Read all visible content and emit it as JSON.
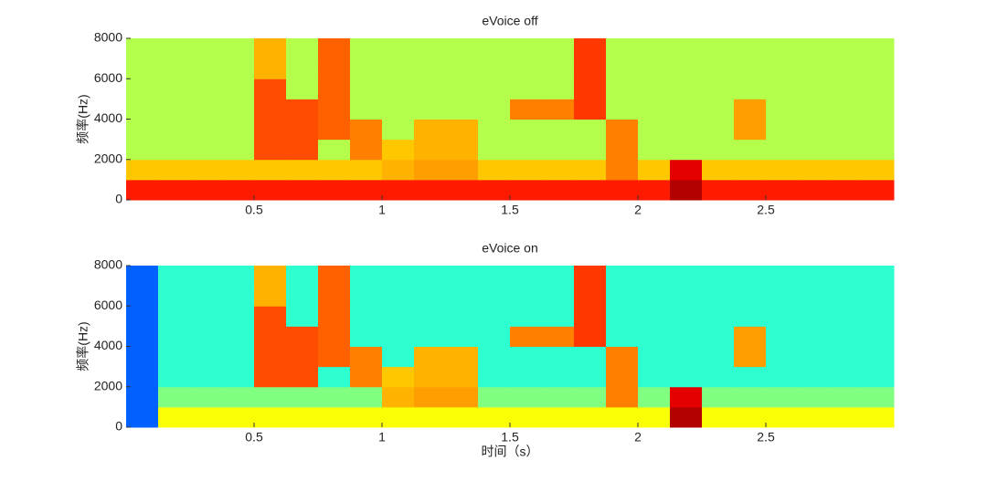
{
  "chart_data": [
    {
      "type": "heatmap",
      "title": "eVoice off",
      "ylabel": "频率(Hz)",
      "colormap": "jet",
      "zlim": [
        0,
        1
      ],
      "xlim": [
        0,
        3
      ],
      "ylim": [
        0,
        8000
      ],
      "xticks": [
        0.5,
        1,
        1.5,
        2,
        2.5
      ],
      "yticks": [
        0,
        2000,
        4000,
        6000,
        8000
      ],
      "x_bins": [
        0,
        0.125,
        0.25,
        0.375,
        0.5,
        0.625,
        0.75,
        0.875,
        1,
        1.125,
        1.25,
        1.375,
        1.5,
        1.625,
        1.75,
        1.875,
        2,
        2.125,
        2.25,
        2.375,
        2.5,
        2.625,
        2.75,
        2.875,
        3
      ],
      "y_bins": [
        0,
        1000,
        2000,
        3000,
        4000,
        5000,
        6000,
        7000,
        8000
      ],
      "z": [
        [
          0.85,
          0.85,
          0.85,
          0.85,
          0.85,
          0.85,
          0.85,
          0.85,
          0.85,
          0.85,
          0.85,
          0.85,
          0.85,
          0.85,
          0.85,
          0.85,
          0.85,
          0.95,
          0.85,
          0.85,
          0.85,
          0.85,
          0.85,
          0.85
        ],
        [
          0.68,
          0.68,
          0.68,
          0.68,
          0.68,
          0.68,
          0.68,
          0.68,
          0.7,
          0.72,
          0.72,
          0.68,
          0.68,
          0.68,
          0.68,
          0.75,
          0.68,
          0.9,
          0.68,
          0.68,
          0.68,
          0.68,
          0.68,
          0.68
        ],
        [
          0.55,
          0.55,
          0.55,
          0.55,
          0.8,
          0.8,
          0.55,
          0.75,
          0.68,
          0.7,
          0.7,
          0.55,
          0.55,
          0.55,
          0.55,
          0.75,
          0.55,
          0.55,
          0.55,
          0.55,
          0.55,
          0.55,
          0.55,
          0.55
        ],
        [
          0.55,
          0.55,
          0.55,
          0.55,
          0.8,
          0.8,
          0.78,
          0.75,
          0.55,
          0.7,
          0.7,
          0.55,
          0.55,
          0.55,
          0.55,
          0.75,
          0.55,
          0.55,
          0.55,
          0.72,
          0.55,
          0.55,
          0.55,
          0.55
        ],
        [
          0.55,
          0.55,
          0.55,
          0.55,
          0.8,
          0.8,
          0.78,
          0.55,
          0.55,
          0.55,
          0.55,
          0.55,
          0.75,
          0.75,
          0.82,
          0.55,
          0.55,
          0.55,
          0.55,
          0.72,
          0.55,
          0.55,
          0.55,
          0.55
        ],
        [
          0.55,
          0.55,
          0.55,
          0.55,
          0.8,
          0.55,
          0.78,
          0.55,
          0.55,
          0.55,
          0.55,
          0.55,
          0.55,
          0.55,
          0.82,
          0.55,
          0.55,
          0.55,
          0.55,
          0.55,
          0.55,
          0.55,
          0.55,
          0.55
        ],
        [
          0.55,
          0.55,
          0.55,
          0.55,
          0.7,
          0.55,
          0.78,
          0.55,
          0.55,
          0.55,
          0.55,
          0.55,
          0.55,
          0.55,
          0.82,
          0.55,
          0.55,
          0.55,
          0.55,
          0.55,
          0.55,
          0.55,
          0.55,
          0.55
        ],
        [
          0.55,
          0.55,
          0.55,
          0.55,
          0.7,
          0.55,
          0.78,
          0.55,
          0.55,
          0.55,
          0.55,
          0.55,
          0.55,
          0.55,
          0.82,
          0.55,
          0.55,
          0.55,
          0.55,
          0.55,
          0.55,
          0.55,
          0.55,
          0.55
        ]
      ]
    },
    {
      "type": "heatmap",
      "title": "eVoice on",
      "ylabel": "频率(Hz)",
      "xlabel": "时间（s）",
      "colormap": "jet",
      "zlim": [
        0,
        1
      ],
      "xlim": [
        0,
        3
      ],
      "ylim": [
        0,
        8000
      ],
      "xticks": [
        0.5,
        1,
        1.5,
        2,
        2.5
      ],
      "yticks": [
        0,
        2000,
        4000,
        6000,
        8000
      ],
      "x_bins": [
        0,
        0.125,
        0.25,
        0.375,
        0.5,
        0.625,
        0.75,
        0.875,
        1,
        1.125,
        1.25,
        1.375,
        1.5,
        1.625,
        1.75,
        1.875,
        2,
        2.125,
        2.25,
        2.375,
        2.5,
        2.625,
        2.75,
        2.875,
        3
      ],
      "y_bins": [
        0,
        1000,
        2000,
        3000,
        4000,
        5000,
        6000,
        7000,
        8000
      ],
      "z": [
        [
          0.22,
          0.62,
          0.62,
          0.62,
          0.62,
          0.62,
          0.62,
          0.62,
          0.62,
          0.62,
          0.62,
          0.62,
          0.62,
          0.62,
          0.62,
          0.62,
          0.62,
          0.95,
          0.62,
          0.62,
          0.62,
          0.62,
          0.62,
          0.62
        ],
        [
          0.22,
          0.5,
          0.5,
          0.5,
          0.5,
          0.5,
          0.5,
          0.5,
          0.7,
          0.72,
          0.72,
          0.5,
          0.5,
          0.5,
          0.5,
          0.75,
          0.5,
          0.9,
          0.5,
          0.5,
          0.5,
          0.5,
          0.5,
          0.5
        ],
        [
          0.22,
          0.42,
          0.42,
          0.42,
          0.8,
          0.8,
          0.42,
          0.75,
          0.68,
          0.7,
          0.7,
          0.42,
          0.42,
          0.42,
          0.42,
          0.75,
          0.42,
          0.42,
          0.42,
          0.42,
          0.42,
          0.42,
          0.42,
          0.42
        ],
        [
          0.22,
          0.42,
          0.42,
          0.42,
          0.8,
          0.8,
          0.78,
          0.75,
          0.42,
          0.7,
          0.7,
          0.42,
          0.42,
          0.42,
          0.42,
          0.75,
          0.42,
          0.42,
          0.42,
          0.72,
          0.42,
          0.42,
          0.42,
          0.42
        ],
        [
          0.22,
          0.42,
          0.42,
          0.42,
          0.8,
          0.8,
          0.78,
          0.42,
          0.42,
          0.42,
          0.42,
          0.42,
          0.75,
          0.75,
          0.82,
          0.42,
          0.42,
          0.42,
          0.42,
          0.72,
          0.42,
          0.42,
          0.42,
          0.42
        ],
        [
          0.22,
          0.42,
          0.42,
          0.42,
          0.8,
          0.42,
          0.78,
          0.42,
          0.42,
          0.42,
          0.42,
          0.42,
          0.42,
          0.42,
          0.82,
          0.42,
          0.42,
          0.42,
          0.42,
          0.42,
          0.42,
          0.42,
          0.42,
          0.42
        ],
        [
          0.22,
          0.42,
          0.42,
          0.42,
          0.7,
          0.42,
          0.78,
          0.42,
          0.42,
          0.42,
          0.42,
          0.42,
          0.42,
          0.42,
          0.82,
          0.42,
          0.42,
          0.42,
          0.42,
          0.42,
          0.42,
          0.42,
          0.42,
          0.42
        ],
        [
          0.22,
          0.42,
          0.42,
          0.42,
          0.7,
          0.42,
          0.78,
          0.42,
          0.42,
          0.42,
          0.42,
          0.42,
          0.42,
          0.42,
          0.82,
          0.42,
          0.42,
          0.42,
          0.42,
          0.42,
          0.42,
          0.42,
          0.42,
          0.42
        ]
      ]
    }
  ]
}
